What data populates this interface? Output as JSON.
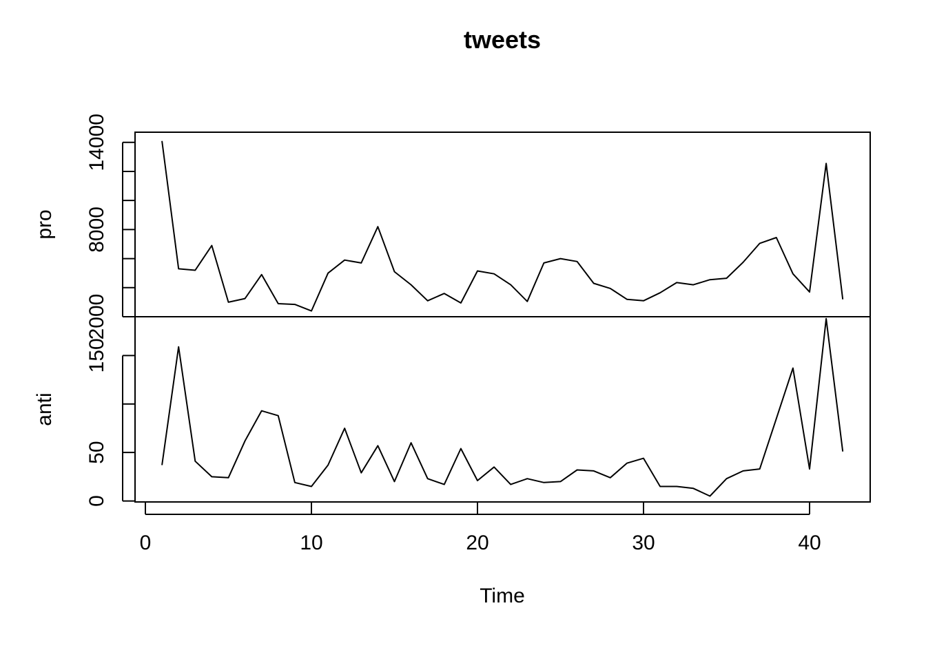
{
  "chart_data": {
    "type": "line",
    "title": "tweets",
    "xlabel": "Time",
    "xlim": [
      1,
      42
    ],
    "x_ticks": [
      0,
      10,
      20,
      30,
      40
    ],
    "x_tick_labels": [
      "0",
      "10",
      "20",
      "30",
      "40"
    ],
    "grid": false,
    "x": [
      1,
      2,
      3,
      4,
      5,
      6,
      7,
      8,
      9,
      10,
      11,
      12,
      13,
      14,
      15,
      16,
      17,
      18,
      19,
      20,
      21,
      22,
      23,
      24,
      25,
      26,
      27,
      28,
      29,
      30,
      31,
      32,
      33,
      34,
      35,
      36,
      37,
      38,
      39,
      40,
      41,
      42
    ],
    "series": [
      {
        "name": "pro",
        "ylim": [
          2000,
          14700
        ],
        "y_ticks": [
          2000,
          4000,
          6000,
          8000,
          10000,
          12000,
          14000
        ],
        "y_tick_labels": [
          "2000",
          "",
          "",
          "8000",
          "",
          "",
          "14000"
        ],
        "values": [
          14100,
          5300,
          5200,
          6900,
          3000,
          3250,
          4900,
          2900,
          2850,
          2400,
          5000,
          5900,
          5700,
          8200,
          5100,
          4200,
          3100,
          3600,
          2950,
          5150,
          4950,
          4200,
          3050,
          5700,
          6000,
          5800,
          4300,
          3950,
          3200,
          3100,
          3650,
          4350,
          4200,
          4550,
          4650,
          5750,
          7050,
          7450,
          4950,
          3700,
          12550,
          3200
        ]
      },
      {
        "name": "anti",
        "ylim": [
          -1,
          190
        ],
        "y_ticks": [
          0,
          50,
          100,
          150
        ],
        "y_tick_labels": [
          "0",
          "50",
          "",
          "150"
        ],
        "values": [
          37,
          159,
          41,
          25,
          24,
          62,
          93,
          88,
          19,
          15,
          37,
          75,
          29,
          57,
          20,
          60,
          23,
          17,
          54,
          21,
          35,
          17,
          23,
          19,
          20,
          32,
          31,
          24,
          39,
          44,
          15,
          15,
          13,
          5,
          23,
          31,
          33,
          85,
          137,
          33,
          188,
          51
        ]
      }
    ]
  }
}
